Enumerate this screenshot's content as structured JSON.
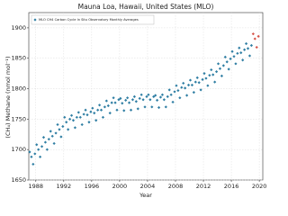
{
  "chart_data": {
    "type": "scatter",
    "title": "Mauna Loa, Hawaii, United States (MLO)",
    "x_label": "Year",
    "y_label": "(CH₄) Methane (nmol mol⁻¹)",
    "xlim": [
      1987,
      2020.5
    ],
    "ylim": [
      1650,
      1925
    ],
    "xticks": [
      1988,
      1992,
      1996,
      2000,
      2004,
      2008,
      2012,
      2016,
      2020
    ],
    "yticks": [
      1650,
      1700,
      1750,
      1800,
      1850,
      1900
    ],
    "grid": true,
    "legend": "upper left",
    "series": [
      {
        "name": "MLO CH4 Carbon Cycle In Situ Observatory Monthly Averages",
        "color": "#2f7ea3",
        "x": [
          1987.125,
          1987.375,
          1987.625,
          1987.875,
          1988.125,
          1988.375,
          1988.625,
          1988.875,
          1989.125,
          1989.375,
          1989.625,
          1989.875,
          1990.125,
          1990.375,
          1990.625,
          1990.875,
          1991.125,
          1991.375,
          1991.625,
          1991.875,
          1992.125,
          1992.375,
          1992.625,
          1992.875,
          1993.125,
          1993.375,
          1993.625,
          1993.875,
          1994.125,
          1994.375,
          1994.625,
          1994.875,
          1995.125,
          1995.375,
          1995.625,
          1995.875,
          1996.125,
          1996.375,
          1996.625,
          1996.875,
          1997.125,
          1997.375,
          1997.625,
          1997.875,
          1998.125,
          1998.375,
          1998.625,
          1998.875,
          1999.125,
          1999.375,
          1999.625,
          1999.875,
          2000.125,
          2000.375,
          2000.625,
          2000.875,
          2001.125,
          2001.375,
          2001.625,
          2001.875,
          2002.125,
          2002.375,
          2002.625,
          2002.875,
          2003.125,
          2003.375,
          2003.625,
          2003.875,
          2004.125,
          2004.375,
          2004.625,
          2004.875,
          2005.125,
          2005.375,
          2005.625,
          2005.875,
          2006.125,
          2006.375,
          2006.625,
          2006.875,
          2007.125,
          2007.375,
          2007.625,
          2007.875,
          2008.125,
          2008.375,
          2008.625,
          2008.875,
          2009.125,
          2009.375,
          2009.625,
          2009.875,
          2010.125,
          2010.375,
          2010.625,
          2010.875,
          2011.125,
          2011.375,
          2011.625,
          2011.875,
          2012.125,
          2012.375,
          2012.625,
          2012.875,
          2013.125,
          2013.375,
          2013.625,
          2013.875,
          2014.125,
          2014.375,
          2014.625,
          2014.875,
          2015.125,
          2015.375,
          2015.625,
          2015.875,
          2016.125,
          2016.375,
          2016.625,
          2016.875,
          2017.125,
          2017.375,
          2017.625,
          2017.875,
          2018.125,
          2018.375,
          2018.625,
          2018.875
        ],
        "values": [
          1696,
          1688,
          1676,
          1693,
          1708,
          1700,
          1688,
          1705,
          1720,
          1712,
          1700,
          1717,
          1730,
          1722,
          1710,
          1727,
          1741,
          1733,
          1721,
          1738,
          1753,
          1745,
          1733,
          1750,
          1756,
          1748,
          1736,
          1753,
          1761,
          1753,
          1741,
          1758,
          1765,
          1757,
          1745,
          1762,
          1768,
          1760,
          1748,
          1765,
          1773,
          1765,
          1753,
          1770,
          1780,
          1772,
          1760,
          1777,
          1785,
          1777,
          1765,
          1782,
          1784,
          1776,
          1764,
          1781,
          1785,
          1777,
          1765,
          1782,
          1787,
          1779,
          1767,
          1784,
          1790,
          1782,
          1770,
          1787,
          1790,
          1782,
          1770,
          1787,
          1789,
          1781,
          1769,
          1786,
          1790,
          1782,
          1770,
          1787,
          1798,
          1790,
          1778,
          1795,
          1805,
          1797,
          1785,
          1802,
          1809,
          1801,
          1789,
          1806,
          1814,
          1806,
          1794,
          1811,
          1818,
          1810,
          1798,
          1815,
          1825,
          1817,
          1805,
          1822,
          1831,
          1823,
          1811,
          1828,
          1841,
          1833,
          1821,
          1838,
          1852,
          1844,
          1832,
          1849,
          1861,
          1853,
          1841,
          1858,
          1867,
          1859,
          1847,
          1864,
          1874,
          1866,
          1854,
          1871
        ]
      },
      {
        "color": "#d6544a",
        "x": [
          2019.125,
          2019.375,
          2019.625,
          2019.875
        ],
        "values": [
          1890,
          1882,
          1868,
          1886
        ]
      }
    ]
  }
}
